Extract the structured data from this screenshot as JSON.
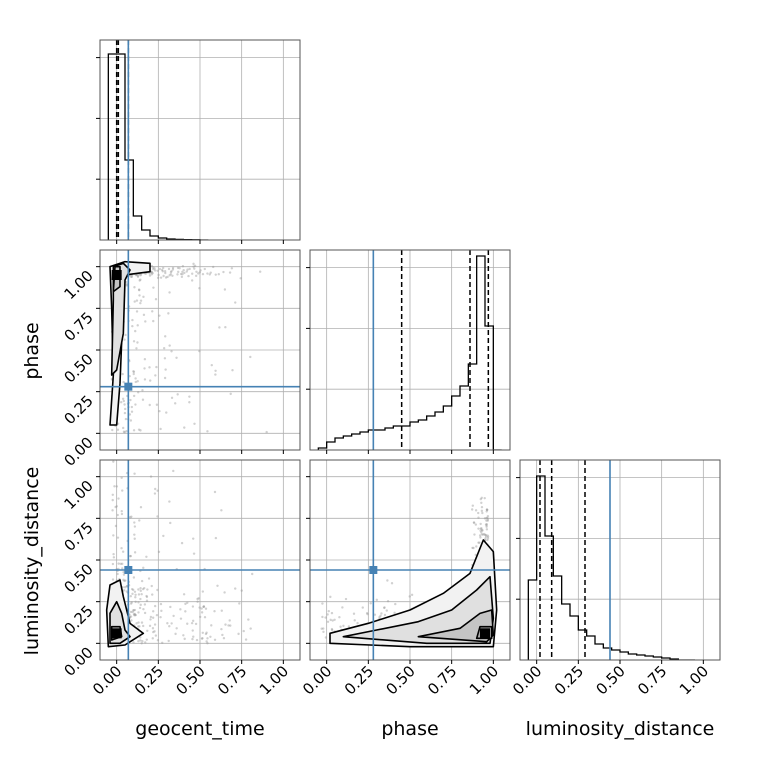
{
  "chart_data": {
    "type": "corner",
    "parameters": [
      "geocent_time",
      "phase",
      "luminosity_distance"
    ],
    "x_labels": [
      "geocent_time",
      "phase",
      "luminosity_distance"
    ],
    "y_labels": [
      "",
      "phase",
      "luminosity_distance"
    ],
    "tick_labels": [
      "0.00",
      "0.25",
      "0.50",
      "0.75",
      "1.00"
    ],
    "tick_values": [
      0,
      0.25,
      0.5,
      0.75,
      1.0
    ],
    "axis_range": [
      -0.1,
      1.1
    ],
    "grid": true,
    "truth_color": "#4682b4",
    "injection_values": {
      "geocent_time": 0.07,
      "phase": 0.28,
      "luminosity_distance": 0.44
    },
    "quantile_lines": {
      "geocent_time": [
        0.0,
        0.01,
        0.07
      ],
      "phase": [
        0.45,
        0.86,
        0.97
      ],
      "luminosity_distance": [
        0.02,
        0.09,
        0.29
      ]
    },
    "marginal_histograms": {
      "geocent_time": {
        "edges": [
          -0.05,
          0.0,
          0.05,
          0.1,
          0.15,
          0.2,
          0.25,
          0.3,
          0.35,
          0.4,
          0.45,
          0.5,
          0.55
        ],
        "heights": [
          0.93,
          0.93,
          0.4,
          0.12,
          0.05,
          0.02,
          0.01,
          0.005,
          0.003,
          0.002,
          0.001,
          0.0
        ],
        "ylim": [
          0,
          1.0
        ]
      },
      "phase": {
        "edges": [
          -0.05,
          0.0,
          0.05,
          0.1,
          0.15,
          0.2,
          0.25,
          0.3,
          0.35,
          0.4,
          0.45,
          0.5,
          0.55,
          0.6,
          0.65,
          0.7,
          0.75,
          0.8,
          0.85,
          0.9,
          0.95,
          1.0,
          1.05
        ],
        "heights": [
          0.01,
          0.04,
          0.06,
          0.07,
          0.08,
          0.09,
          0.1,
          0.1,
          0.11,
          0.12,
          0.12,
          0.14,
          0.15,
          0.17,
          0.19,
          0.22,
          0.27,
          0.32,
          0.43,
          0.97,
          0.62,
          0.0
        ],
        "ylim": [
          0,
          1.0
        ]
      },
      "luminosity_distance": {
        "edges": [
          -0.05,
          0.0,
          0.05,
          0.1,
          0.15,
          0.2,
          0.25,
          0.3,
          0.35,
          0.4,
          0.45,
          0.5,
          0.55,
          0.6,
          0.65,
          0.7,
          0.75,
          0.8,
          0.85,
          0.9,
          0.95
        ],
        "heights": [
          0.4,
          0.92,
          0.62,
          0.42,
          0.28,
          0.22,
          0.15,
          0.12,
          0.08,
          0.06,
          0.05,
          0.04,
          0.03,
          0.025,
          0.02,
          0.015,
          0.01,
          0.005,
          0.0,
          0.0
        ],
        "ylim": [
          0,
          1.0
        ]
      }
    },
    "joint_panels": [
      {
        "x": "geocent_time",
        "y": "phase",
        "mode": [
          0.0,
          0.95
        ],
        "contours": [
          [
            [
              -0.04,
              0.05
            ],
            [
              -0.02,
              0.35
            ],
            [
              -0.03,
              0.75
            ],
            [
              -0.04,
              1.0
            ],
            [
              0.05,
              1.03
            ],
            [
              0.2,
              1.02
            ],
            [
              0.2,
              0.97
            ],
            [
              0.05,
              0.95
            ],
            [
              0.04,
              0.8
            ],
            [
              0.02,
              0.3
            ],
            [
              0.0,
              0.05
            ],
            [
              -0.04,
              0.05
            ]
          ],
          [
            [
              -0.03,
              0.35
            ],
            [
              -0.02,
              0.8
            ],
            [
              -0.02,
              1.0
            ],
            [
              0.04,
              1.02
            ],
            [
              0.08,
              0.98
            ],
            [
              0.05,
              0.92
            ],
            [
              0.04,
              0.6
            ],
            [
              0.0,
              0.38
            ],
            [
              -0.03,
              0.35
            ]
          ],
          [
            [
              -0.02,
              0.85
            ],
            [
              -0.01,
              1.0
            ],
            [
              0.02,
              1.0
            ],
            [
              0.02,
              0.88
            ],
            [
              -0.02,
              0.85
            ]
          ]
        ]
      },
      {
        "x": "geocent_time",
        "y": "luminosity_distance",
        "mode": [
          0.0,
          0.06
        ],
        "contours": [
          [
            [
              -0.05,
              -0.02
            ],
            [
              -0.06,
              0.2
            ],
            [
              -0.04,
              0.35
            ],
            [
              0.02,
              0.38
            ],
            [
              0.04,
              0.28
            ],
            [
              0.08,
              0.12
            ],
            [
              0.16,
              0.06
            ],
            [
              0.05,
              -0.01
            ],
            [
              -0.05,
              -0.02
            ]
          ],
          [
            [
              -0.04,
              0.0
            ],
            [
              -0.04,
              0.18
            ],
            [
              0.0,
              0.25
            ],
            [
              0.03,
              0.18
            ],
            [
              0.05,
              0.08
            ],
            [
              0.08,
              0.04
            ],
            [
              0.02,
              0.0
            ],
            [
              -0.04,
              0.0
            ]
          ],
          [
            [
              -0.03,
              0.02
            ],
            [
              -0.03,
              0.1
            ],
            [
              0.02,
              0.1
            ],
            [
              0.03,
              0.04
            ],
            [
              -0.03,
              0.02
            ]
          ]
        ]
      },
      {
        "x": "phase",
        "y": "luminosity_distance",
        "mode": [
          0.95,
          0.06
        ],
        "contours": [
          [
            [
              0.02,
              0.0
            ],
            [
              0.02,
              0.06
            ],
            [
              0.25,
              0.12
            ],
            [
              0.5,
              0.2
            ],
            [
              0.7,
              0.3
            ],
            [
              0.86,
              0.42
            ],
            [
              0.94,
              0.62
            ],
            [
              1.0,
              0.55
            ],
            [
              1.02,
              0.2
            ],
            [
              1.0,
              -0.02
            ],
            [
              0.5,
              -0.02
            ],
            [
              0.02,
              0.0
            ]
          ],
          [
            [
              0.1,
              0.04
            ],
            [
              0.3,
              0.08
            ],
            [
              0.55,
              0.13
            ],
            [
              0.75,
              0.2
            ],
            [
              0.9,
              0.32
            ],
            [
              0.98,
              0.4
            ],
            [
              1.0,
              0.15
            ],
            [
              0.98,
              0.0
            ],
            [
              0.6,
              0.0
            ],
            [
              0.1,
              0.04
            ]
          ],
          [
            [
              0.55,
              0.04
            ],
            [
              0.8,
              0.09
            ],
            [
              0.92,
              0.18
            ],
            [
              0.99,
              0.2
            ],
            [
              1.0,
              0.05
            ],
            [
              0.96,
              0.01
            ],
            [
              0.55,
              0.04
            ]
          ],
          [
            [
              0.9,
              0.03
            ],
            [
              0.92,
              0.1
            ],
            [
              0.99,
              0.1
            ],
            [
              0.99,
              0.03
            ],
            [
              0.9,
              0.03
            ]
          ]
        ]
      }
    ]
  }
}
